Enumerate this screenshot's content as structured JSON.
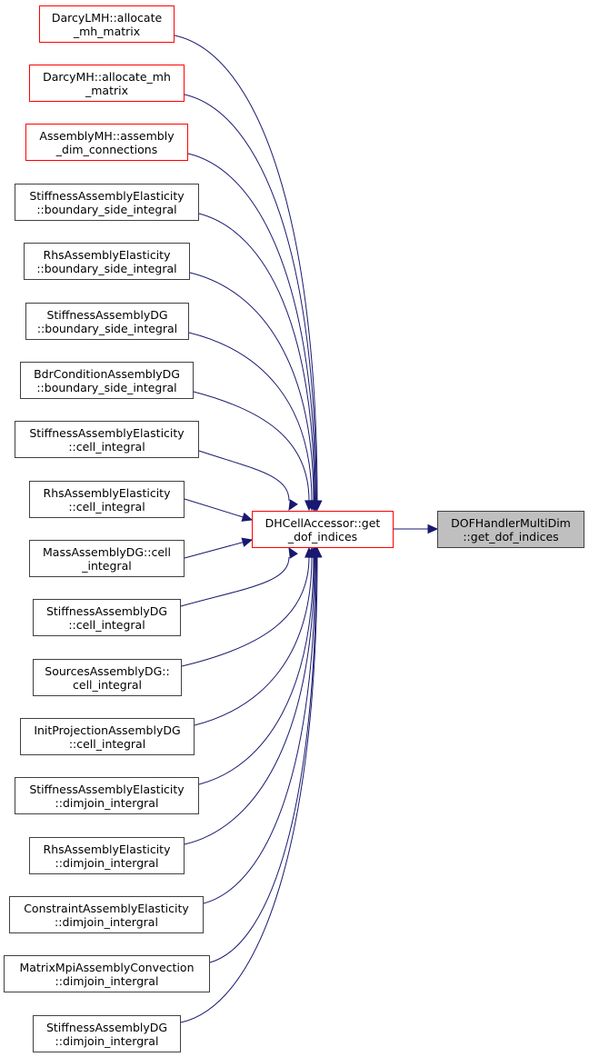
{
  "colors": {
    "edge": "#191970",
    "caller_border_red": "#ff0000",
    "caller_border": "#404040",
    "focus_fill": "#bfbfbf"
  },
  "focus_node": {
    "lines": [
      "DOFHandlerMultiDim",
      "::get_dof_indices"
    ]
  },
  "center_node": {
    "lines": [
      "DHCellAccessor::get",
      "_dof_indices"
    ],
    "border": "red"
  },
  "callers": [
    {
      "lines": [
        "DarcyLMH::allocate",
        "_mh_matrix"
      ],
      "border": "red"
    },
    {
      "lines": [
        "DarcyMH::allocate_mh",
        "_matrix"
      ],
      "border": "red"
    },
    {
      "lines": [
        "AssemblyMH::assembly",
        "_dim_connections"
      ],
      "border": "red"
    },
    {
      "lines": [
        "StiffnessAssemblyElasticity",
        "::boundary_side_integral"
      ],
      "border": "black"
    },
    {
      "lines": [
        "RhsAssemblyElasticity",
        "::boundary_side_integral"
      ],
      "border": "black"
    },
    {
      "lines": [
        "StiffnessAssemblyDG",
        "::boundary_side_integral"
      ],
      "border": "black"
    },
    {
      "lines": [
        "BdrConditionAssemblyDG",
        "::boundary_side_integral"
      ],
      "border": "black"
    },
    {
      "lines": [
        "StiffnessAssemblyElasticity",
        "::cell_integral"
      ],
      "border": "black"
    },
    {
      "lines": [
        "RhsAssemblyElasticity",
        "::cell_integral"
      ],
      "border": "black"
    },
    {
      "lines": [
        "MassAssemblyDG::cell",
        "_integral"
      ],
      "border": "black"
    },
    {
      "lines": [
        "StiffnessAssemblyDG",
        "::cell_integral"
      ],
      "border": "black"
    },
    {
      "lines": [
        "SourcesAssemblyDG::",
        "cell_integral"
      ],
      "border": "black"
    },
    {
      "lines": [
        "InitProjectionAssemblyDG",
        "::cell_integral"
      ],
      "border": "black"
    },
    {
      "lines": [
        "StiffnessAssemblyElasticity",
        "::dimjoin_intergral"
      ],
      "border": "black"
    },
    {
      "lines": [
        "RhsAssemblyElasticity",
        "::dimjoin_intergral"
      ],
      "border": "black"
    },
    {
      "lines": [
        "ConstraintAssemblyElasticity",
        "::dimjoin_intergral"
      ],
      "border": "black"
    },
    {
      "lines": [
        "MatrixMpiAssemblyConvection",
        "::dimjoin_intergral"
      ],
      "border": "black"
    },
    {
      "lines": [
        "StiffnessAssemblyDG",
        "::dimjoin_intergral"
      ],
      "border": "black"
    }
  ]
}
